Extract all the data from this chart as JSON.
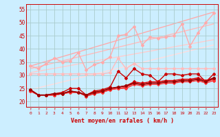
{
  "title": "",
  "xlabel": "Vent moyen/en rafales ( km/h )",
  "ylabel": "",
  "bg_color": "#cceeff",
  "grid_color": "#aacccc",
  "text_color": "#cc0000",
  "xlim": [
    -0.5,
    23.5
  ],
  "ylim": [
    18,
    57
  ],
  "yticks": [
    20,
    25,
    30,
    35,
    40,
    45,
    50,
    55
  ],
  "xticks": [
    0,
    1,
    2,
    3,
    4,
    5,
    6,
    7,
    8,
    9,
    10,
    11,
    12,
    13,
    14,
    15,
    16,
    17,
    18,
    19,
    20,
    21,
    22,
    23
  ],
  "trend_lines": [
    {
      "x": [
        0,
        23
      ],
      "y": [
        33.5,
        54.0
      ],
      "color": "#ffaaaa",
      "lw": 1.0
    },
    {
      "x": [
        0,
        23
      ],
      "y": [
        32.5,
        49.5
      ],
      "color": "#ffbbbb",
      "lw": 1.0
    },
    {
      "x": [
        0,
        23
      ],
      "y": [
        31.0,
        43.5
      ],
      "color": "#ffcccc",
      "lw": 1.0
    },
    {
      "x": [
        0,
        23
      ],
      "y": [
        24.5,
        41.5
      ],
      "color": "#ffdddd",
      "lw": 1.0
    }
  ],
  "series": [
    {
      "x": [
        0,
        1,
        2,
        3,
        4,
        5,
        6,
        7,
        8,
        9,
        10,
        11,
        12,
        13,
        14,
        15,
        16,
        17,
        18,
        19,
        20,
        21,
        22,
        23
      ],
      "y": [
        33.5,
        32.5,
        34.5,
        36.5,
        35.0,
        35.5,
        38.5,
        32.0,
        34.0,
        35.0,
        37.0,
        45.0,
        45.5,
        48.5,
        41.5,
        44.5,
        44.0,
        44.5,
        45.0,
        49.5,
        41.0,
        46.0,
        50.0,
        53.5
      ],
      "color": "#ffaaaa",
      "lw": 1.0,
      "marker": "D",
      "ms": 2.0
    },
    {
      "x": [
        0,
        1,
        2,
        3,
        4,
        5,
        6,
        7,
        8,
        9,
        10,
        11,
        12,
        13,
        14,
        15,
        16,
        17,
        18,
        19,
        20,
        21,
        22,
        23
      ],
      "y": [
        30.5,
        30.5,
        30.5,
        30.5,
        30.5,
        30.5,
        30.5,
        30.5,
        30.5,
        30.5,
        31.0,
        36.5,
        32.5,
        34.5,
        32.5,
        32.5,
        32.5,
        32.5,
        32.5,
        32.5,
        32.5,
        32.5,
        32.5,
        32.5
      ],
      "color": "#ffbbbb",
      "lw": 1.0,
      "marker": "D",
      "ms": 2.0
    },
    {
      "x": [
        0,
        1,
        2,
        3,
        4,
        5,
        6,
        7,
        8,
        9,
        10,
        11,
        12,
        13,
        14,
        15,
        16,
        17,
        18,
        19,
        20,
        21,
        22,
        23
      ],
      "y": [
        24.5,
        22.5,
        22.5,
        23.0,
        23.5,
        25.0,
        25.0,
        22.5,
        24.0,
        24.5,
        25.5,
        31.5,
        29.0,
        32.5,
        30.5,
        30.0,
        27.5,
        30.5,
        30.5,
        30.0,
        30.5,
        30.5,
        27.5,
        30.5
      ],
      "color": "#cc0000",
      "lw": 1.0,
      "marker": "D",
      "ms": 2.0
    },
    {
      "x": [
        0,
        1,
        2,
        3,
        4,
        5,
        6,
        7,
        8,
        9,
        10,
        11,
        12,
        13,
        14,
        15,
        16,
        17,
        18,
        19,
        20,
        21,
        22,
        23
      ],
      "y": [
        24.0,
        22.5,
        22.5,
        22.5,
        23.0,
        24.0,
        23.5,
        22.5,
        23.5,
        24.0,
        25.0,
        25.5,
        26.0,
        27.5,
        27.0,
        27.5,
        27.5,
        28.0,
        28.0,
        28.5,
        28.5,
        29.0,
        28.0,
        29.0
      ],
      "color": "#dd0000",
      "lw": 1.0,
      "marker": "D",
      "ms": 2.0
    },
    {
      "x": [
        0,
        1,
        2,
        3,
        4,
        5,
        6,
        7,
        8,
        9,
        10,
        11,
        12,
        13,
        14,
        15,
        16,
        17,
        18,
        19,
        20,
        21,
        22,
        23
      ],
      "y": [
        24.5,
        22.5,
        22.5,
        22.5,
        23.0,
        23.5,
        23.5,
        22.0,
        23.0,
        23.5,
        24.5,
        25.0,
        25.5,
        27.0,
        26.5,
        27.0,
        27.0,
        27.5,
        27.5,
        28.0,
        28.0,
        28.5,
        27.5,
        28.5
      ],
      "color": "#ee2222",
      "lw": 1.0,
      "marker": "D",
      "ms": 2.0
    },
    {
      "x": [
        0,
        1,
        2,
        3,
        4,
        5,
        6,
        7,
        8,
        9,
        10,
        11,
        12,
        13,
        14,
        15,
        16,
        17,
        18,
        19,
        20,
        21,
        22,
        23
      ],
      "y": [
        24.0,
        22.5,
        22.5,
        22.5,
        23.0,
        23.5,
        23.5,
        22.5,
        23.5,
        23.5,
        24.5,
        25.0,
        25.0,
        26.5,
        26.0,
        26.5,
        26.5,
        27.0,
        27.0,
        27.5,
        27.5,
        28.0,
        27.0,
        28.0
      ],
      "color": "#ff3333",
      "lw": 1.0,
      "marker": "D",
      "ms": 2.0
    },
    {
      "x": [
        0,
        1,
        2,
        3,
        4,
        5,
        6,
        7,
        8,
        9,
        10,
        11,
        12,
        13,
        14,
        15,
        16,
        17,
        18,
        19,
        20,
        21,
        22,
        23
      ],
      "y": [
        24.5,
        22.5,
        22.5,
        23.0,
        23.0,
        24.0,
        23.5,
        22.5,
        23.5,
        24.0,
        25.0,
        25.5,
        26.0,
        27.0,
        26.5,
        27.0,
        27.0,
        27.5,
        27.5,
        28.0,
        28.0,
        28.5,
        27.5,
        29.0
      ],
      "color": "#990000",
      "lw": 1.2,
      "marker": "D",
      "ms": 2.0
    }
  ]
}
